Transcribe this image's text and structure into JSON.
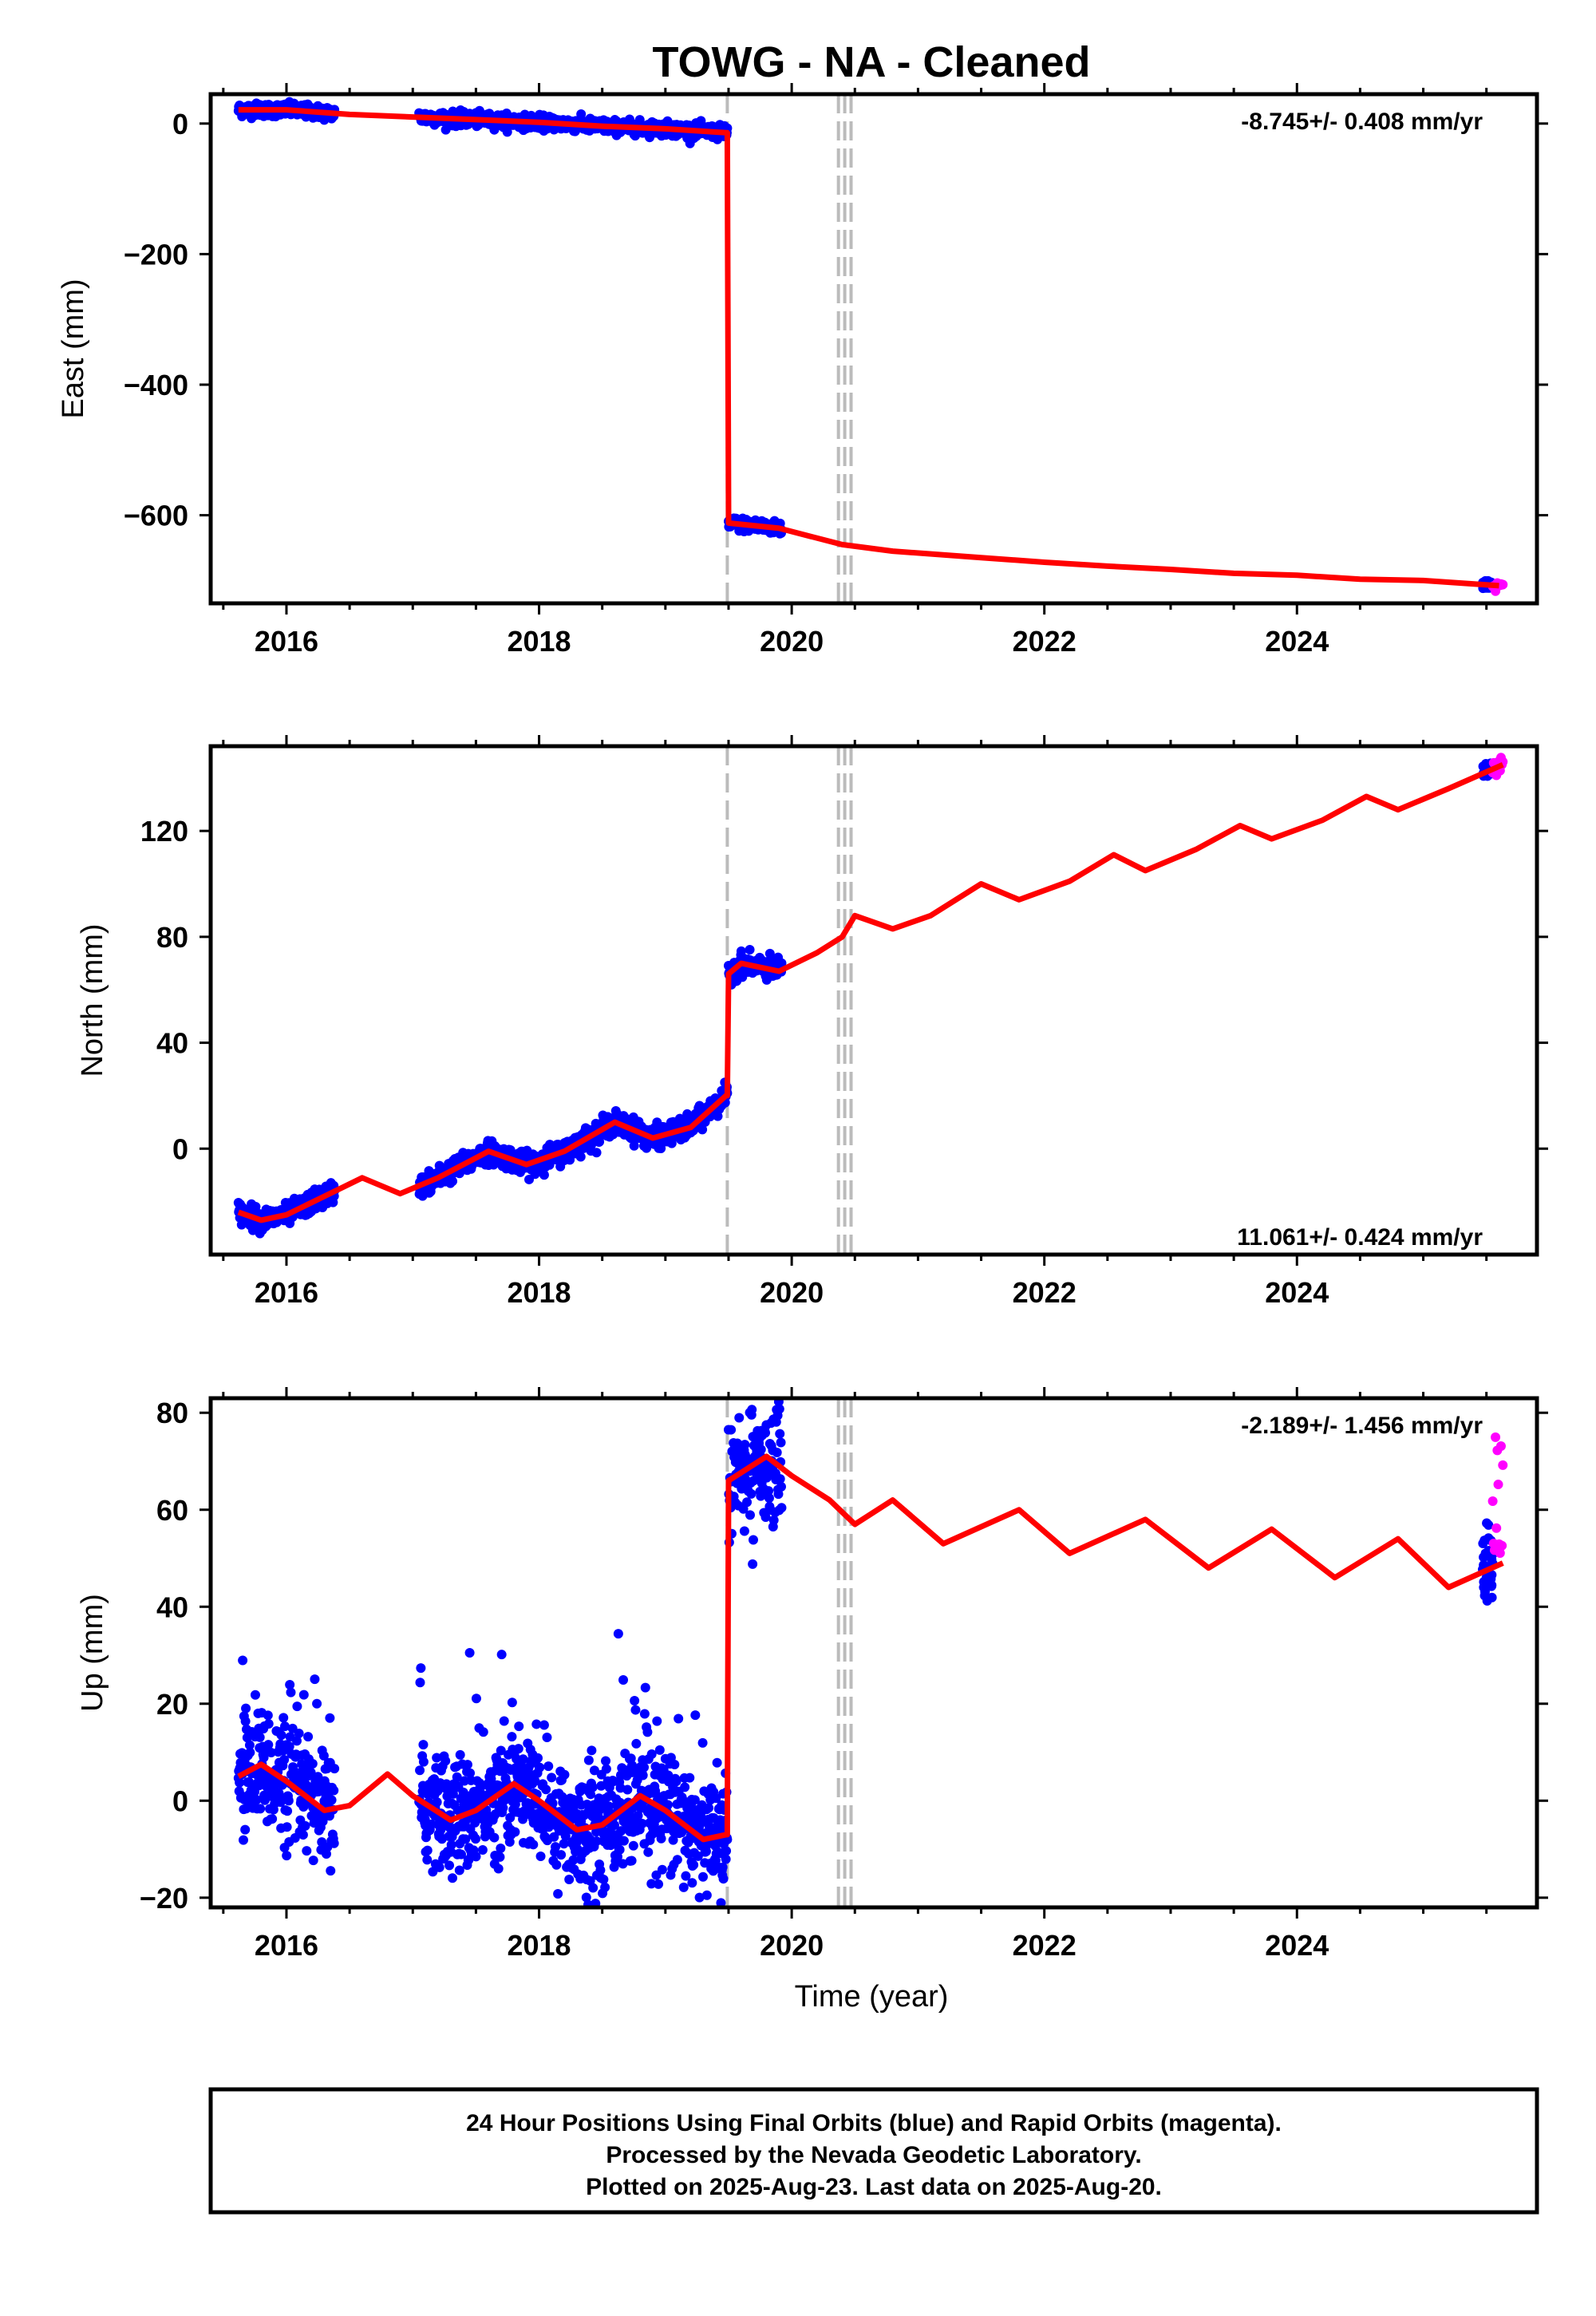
{
  "title": "TOWG  - NA - Cleaned",
  "x_axis_label": "Time (year)",
  "footer": {
    "line1": "24 Hour Positions Using Final Orbits (blue) and Rapid Orbits (magenta).",
    "line2": "Processed by the Nevada Geodetic Laboratory.",
    "line3": "Plotted on 2025-Aug-23. Last data on 2025-Aug-20."
  },
  "colors": {
    "final_orbits": "#0000ff",
    "rapid_orbits": "#ff00ff",
    "model": "#ff0000",
    "event_lines": "#bbbbbb"
  },
  "chart_data": [
    {
      "type": "scatter",
      "name": "east",
      "ylabel": "East (mm)",
      "rate_text": "-8.745+/- 0.408 mm/yr",
      "xlim": [
        2015.4,
        2025.9
      ],
      "ylim": [
        -735,
        45
      ],
      "xticks": [
        2016,
        2018,
        2020,
        2022,
        2024
      ],
      "yticks": [
        0,
        -200,
        -400,
        -600
      ],
      "ytick_labels": [
        "0",
        "−200",
        "−400",
        "−600"
      ],
      "event_lines_x": [
        2019.49,
        2020.37,
        2020.42,
        2020.47
      ],
      "data_segments": [
        [
          2015.62,
          2016.38
        ],
        [
          2017.05,
          2019.49
        ],
        [
          2019.5,
          2019.92
        ]
      ],
      "rapid_segment": [
        2025.55,
        2025.63
      ],
      "model": [
        [
          2015.62,
          21
        ],
        [
          2016.0,
          21
        ],
        [
          2016.5,
          14
        ],
        [
          2017.0,
          10
        ],
        [
          2017.5,
          6
        ],
        [
          2018.0,
          2
        ],
        [
          2018.5,
          -4
        ],
        [
          2019.0,
          -8
        ],
        [
          2019.48,
          -14
        ],
        [
          2019.49,
          -14
        ],
        [
          2019.5,
          -612
        ],
        [
          2019.9,
          -620
        ],
        [
          2020.4,
          -645
        ],
        [
          2020.8,
          -655
        ],
        [
          2021.5,
          -665
        ],
        [
          2022.0,
          -672
        ],
        [
          2022.5,
          -678
        ],
        [
          2023.0,
          -683
        ],
        [
          2023.5,
          -689
        ],
        [
          2024.0,
          -692
        ],
        [
          2024.5,
          -698
        ],
        [
          2025.0,
          -700
        ],
        [
          2025.6,
          -708
        ]
      ],
      "sigma": 5
    },
    {
      "type": "scatter",
      "name": "north",
      "ylabel": "North (mm)",
      "rate_text": "11.061+/- 0.424 mm/yr",
      "xlim": [
        2015.4,
        2025.9
      ],
      "ylim": [
        -40,
        152
      ],
      "xticks": [
        2016,
        2018,
        2020,
        2022,
        2024
      ],
      "yticks": [
        0,
        40,
        80,
        120
      ],
      "ytick_labels": [
        "0",
        "40",
        "80",
        "120"
      ],
      "event_lines_x": [
        2019.49,
        2020.37,
        2020.42,
        2020.47
      ],
      "data_segments": [
        [
          2015.62,
          2016.38
        ],
        [
          2017.05,
          2019.49
        ],
        [
          2019.5,
          2019.92
        ]
      ],
      "rapid_segment": [
        2025.55,
        2025.63
      ],
      "model": [
        [
          2015.62,
          -24
        ],
        [
          2015.8,
          -27
        ],
        [
          2016.0,
          -25
        ],
        [
          2016.3,
          -18
        ],
        [
          2016.6,
          -11
        ],
        [
          2016.9,
          -17
        ],
        [
          2017.2,
          -11
        ],
        [
          2017.6,
          -1
        ],
        [
          2017.9,
          -6
        ],
        [
          2018.2,
          -1
        ],
        [
          2018.6,
          10
        ],
        [
          2018.9,
          4
        ],
        [
          2019.2,
          8
        ],
        [
          2019.48,
          20
        ],
        [
          2019.49,
          20
        ],
        [
          2019.5,
          66
        ],
        [
          2019.6,
          70
        ],
        [
          2019.9,
          67
        ],
        [
          2020.2,
          74
        ],
        [
          2020.4,
          80
        ],
        [
          2020.5,
          88
        ],
        [
          2020.8,
          83
        ],
        [
          2021.1,
          88
        ],
        [
          2021.5,
          100
        ],
        [
          2021.8,
          94
        ],
        [
          2022.2,
          101
        ],
        [
          2022.55,
          111
        ],
        [
          2022.8,
          105
        ],
        [
          2023.2,
          113
        ],
        [
          2023.55,
          122
        ],
        [
          2023.8,
          117
        ],
        [
          2024.2,
          124
        ],
        [
          2024.55,
          133
        ],
        [
          2024.8,
          128
        ],
        [
          2025.2,
          136
        ],
        [
          2025.63,
          145
        ]
      ],
      "sigma": 2
    },
    {
      "type": "scatter",
      "name": "up",
      "ylabel": "Up (mm)",
      "rate_text": "-2.189+/- 1.456 mm/yr",
      "xlim": [
        2015.4,
        2025.9
      ],
      "ylim": [
        -22,
        83
      ],
      "xticks": [
        2016,
        2018,
        2020,
        2022,
        2024
      ],
      "yticks": [
        -20,
        0,
        20,
        40,
        60,
        80
      ],
      "ytick_labels": [
        "−20",
        "0",
        "20",
        "40",
        "60",
        "80"
      ],
      "event_lines_x": [
        2019.49,
        2020.37,
        2020.42,
        2020.47
      ],
      "data_segments": [
        [
          2015.62,
          2016.38
        ],
        [
          2017.05,
          2019.49
        ],
        [
          2019.5,
          2019.92
        ]
      ],
      "rapid_segment": [
        2025.55,
        2025.63
      ],
      "model": [
        [
          2015.62,
          5
        ],
        [
          2015.8,
          7.5
        ],
        [
          2016.0,
          4
        ],
        [
          2016.3,
          -2
        ],
        [
          2016.5,
          -1
        ],
        [
          2016.8,
          5.5
        ],
        [
          2017.0,
          1
        ],
        [
          2017.3,
          -4
        ],
        [
          2017.5,
          -2
        ],
        [
          2017.8,
          3.5
        ],
        [
          2018.0,
          0
        ],
        [
          2018.3,
          -6
        ],
        [
          2018.5,
          -5
        ],
        [
          2018.8,
          1
        ],
        [
          2019.0,
          -2
        ],
        [
          2019.3,
          -8
        ],
        [
          2019.48,
          -7
        ],
        [
          2019.49,
          -7
        ],
        [
          2019.5,
          66
        ],
        [
          2019.8,
          71
        ],
        [
          2020.0,
          67
        ],
        [
          2020.3,
          62
        ],
        [
          2020.5,
          57
        ],
        [
          2020.8,
          62
        ],
        [
          2021.2,
          53
        ],
        [
          2021.8,
          60
        ],
        [
          2022.2,
          51
        ],
        [
          2022.8,
          58
        ],
        [
          2023.3,
          48
        ],
        [
          2023.8,
          56
        ],
        [
          2024.3,
          46
        ],
        [
          2024.8,
          54
        ],
        [
          2025.2,
          44
        ],
        [
          2025.63,
          49
        ]
      ],
      "sigma": 6
    }
  ]
}
